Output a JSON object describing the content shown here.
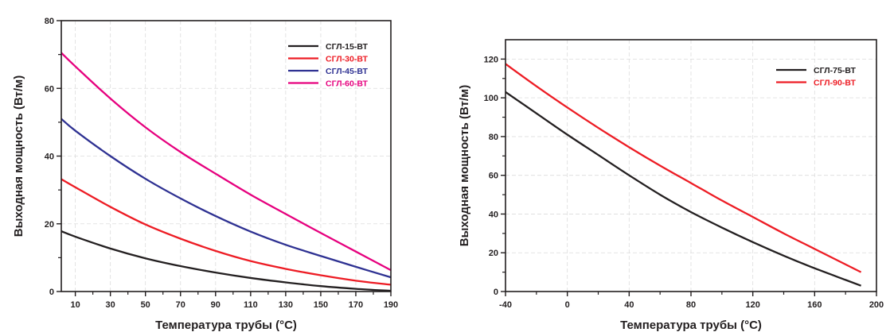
{
  "chart_data": [
    {
      "type": "line",
      "title": "",
      "xlabel": "Температура трубы (°C)",
      "ylabel": "Выходная мощность (Вт/м)",
      "xlim": [
        2,
        190
      ],
      "ylim": [
        0,
        80
      ],
      "xticks": [
        10,
        30,
        50,
        70,
        90,
        110,
        130,
        150,
        170,
        190
      ],
      "xminor": [
        20,
        40,
        60,
        80,
        100,
        120,
        140,
        160,
        180
      ],
      "yticks": [
        0,
        20,
        40,
        60,
        80
      ],
      "yminor": [
        10,
        30,
        50,
        70
      ],
      "grid": true,
      "legend_position": "top-right",
      "x": [
        2,
        10,
        30,
        50,
        70,
        90,
        110,
        130,
        150,
        170,
        190
      ],
      "series": [
        {
          "name": "СГЛ-15-ВТ",
          "color": "#231f20",
          "values": [
            17.8,
            16.2,
            12.7,
            9.8,
            7.5,
            5.6,
            4.0,
            2.7,
            1.6,
            0.8,
            0.2
          ]
        },
        {
          "name": "СГЛ-30-ВТ",
          "color": "#ed1c24",
          "values": [
            33.2,
            30.8,
            25.0,
            19.8,
            15.6,
            12.0,
            9.0,
            6.7,
            4.8,
            3.2,
            2.0
          ]
        },
        {
          "name": "СГЛ-45-ВТ",
          "color": "#2e3192",
          "values": [
            51.0,
            47.5,
            40.0,
            33.3,
            27.5,
            22.3,
            17.7,
            13.8,
            10.5,
            7.3,
            4.2
          ]
        },
        {
          "name": "СГЛ-60-ВТ",
          "color": "#e6007e",
          "values": [
            70.5,
            66.5,
            57.0,
            48.5,
            41.2,
            34.8,
            28.6,
            22.9,
            17.3,
            11.8,
            6.3
          ]
        }
      ]
    },
    {
      "type": "line",
      "title": "",
      "xlabel": "Температура трубы (°C)",
      "ylabel": "Выходная мощность (Вт/м)",
      "xlim": [
        -40,
        200
      ],
      "ylim": [
        0,
        130
      ],
      "xticks": [
        -40,
        0,
        40,
        80,
        120,
        160,
        200
      ],
      "xminor": [
        -20,
        20,
        60,
        100,
        140,
        180
      ],
      "yticks": [
        0,
        20,
        40,
        60,
        80,
        100,
        120
      ],
      "yminor": [
        10,
        30,
        50,
        70,
        90,
        110
      ],
      "grid": true,
      "legend_position": "top-right",
      "x": [
        -40,
        -20,
        0,
        20,
        40,
        60,
        80,
        100,
        120,
        140,
        160,
        180,
        190
      ],
      "series": [
        {
          "name": "СГЛ-75-ВТ",
          "color": "#231f20",
          "values": [
            103,
            92,
            81,
            70.5,
            60,
            50,
            41,
            33,
            25.5,
            18.5,
            12,
            6,
            3
          ]
        },
        {
          "name": "СГЛ-90-ВТ",
          "color": "#ed1c24",
          "values": [
            117.5,
            106,
            95,
            84.5,
            74.5,
            65,
            56,
            47,
            38.5,
            30,
            22,
            14,
            10
          ]
        }
      ]
    }
  ]
}
